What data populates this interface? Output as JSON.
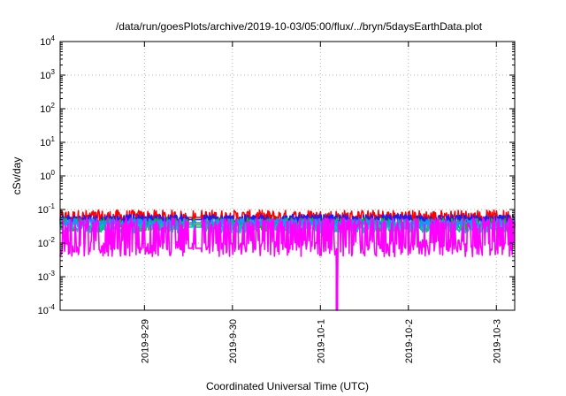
{
  "chart_data": {
    "type": "line",
    "title": "/data/run/goesPlots/archive/2019-10-03/05:00/flux/../bryn/5daysEarthData.plot",
    "xlabel": "Coordinated Universal Time (UTC)",
    "ylabel": "cSv/day",
    "yscale": "log",
    "grid": true,
    "xlim": [
      "2019-09-28 01:00",
      "2019-10-03 05:00"
    ],
    "ylim": [
      0.0001,
      10000
    ],
    "x_ticks": [
      {
        "value": "2019-09-29",
        "label": "2019-9-29"
      },
      {
        "value": "2019-09-30",
        "label": "2019-9-30"
      },
      {
        "value": "2019-10-01",
        "label": "2019-10-1"
      },
      {
        "value": "2019-10-02",
        "label": "2019-10-2"
      },
      {
        "value": "2019-10-03",
        "label": "2019-10-3"
      }
    ],
    "y_ticks": [
      {
        "value": 0.0001,
        "base": "10",
        "exp": "-4"
      },
      {
        "value": 0.001,
        "base": "10",
        "exp": "-3"
      },
      {
        "value": 0.01,
        "base": "10",
        "exp": "-2"
      },
      {
        "value": 0.1,
        "base": "10",
        "exp": "-1"
      },
      {
        "value": 1,
        "base": "10",
        "exp": "0"
      },
      {
        "value": 10,
        "base": "10",
        "exp": "1"
      },
      {
        "value": 100,
        "base": "10",
        "exp": "2"
      },
      {
        "value": 1000,
        "base": "10",
        "exp": "3"
      },
      {
        "value": 10000,
        "base": "10",
        "exp": "4"
      }
    ],
    "series": [
      {
        "color": "#ff0000",
        "base": 0.058,
        "spread": 0.22,
        "min_dip": 1.0
      },
      {
        "color": "#1a1aff",
        "base": 0.05,
        "spread": 0.15,
        "min_dip": 1.0
      },
      {
        "color": "#00c000",
        "base": 0.035,
        "spread": 0.2,
        "min_dip": 1.0
      },
      {
        "color": "#00c0c0",
        "base": 0.03,
        "spread": 0.18,
        "min_dip": 1.0
      },
      {
        "color": "#1e90ff",
        "base": 0.04,
        "spread": 0.12,
        "min_dip": 1.0
      },
      {
        "color": "#ff00ff",
        "base": 0.007,
        "spread": 0.25,
        "spike_to": 0.04,
        "drop": {
          "x": "2019-10-01 04:30",
          "to": 0.0001
        }
      }
    ],
    "gaps": [
      {
        "from": "2019-09-29 12:00",
        "to": "2019-09-29 13:00"
      },
      {
        "from": "2019-09-29 14:00",
        "to": "2019-09-29 15:30"
      }
    ]
  }
}
